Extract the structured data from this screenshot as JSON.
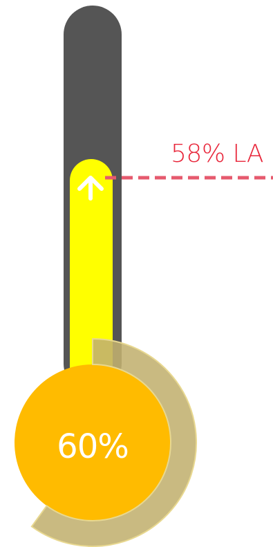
{
  "gauge": {
    "value_percent": 60,
    "value_label": "60%",
    "target_percent": 58,
    "target_label": "58% LA",
    "arrow_direction": "up",
    "colors": {
      "tube": "#555555",
      "fill": "#ffff00",
      "bulb": "#ffbb00",
      "ring": "#c2b070",
      "ring_edge": "#e8d890",
      "target": "#e8263a",
      "target_line": "#e65a6e",
      "arrow": "#ffffff",
      "value_text": "#ffffff"
    }
  }
}
